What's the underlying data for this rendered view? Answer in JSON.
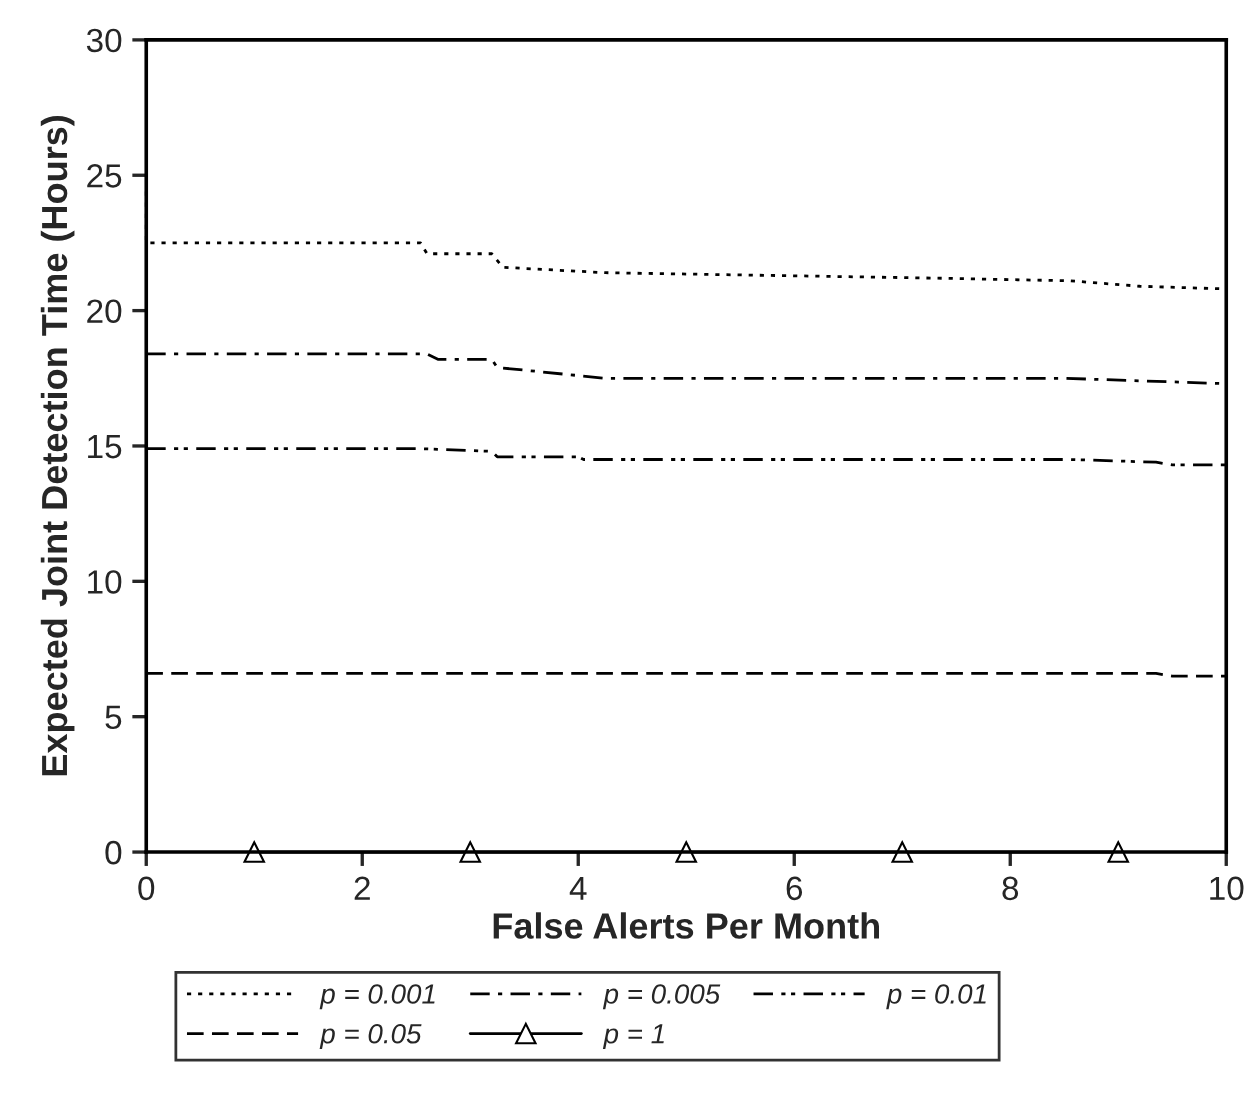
{
  "chart_data": {
    "type": "line",
    "xlabel": "False Alerts Per Month",
    "ylabel": "Expected Joint Detection Time (Hours)",
    "xlim": [
      0,
      10
    ],
    "ylim": [
      0,
      30
    ],
    "xticks": [
      0,
      2,
      4,
      6,
      8,
      10
    ],
    "yticks": [
      0,
      5,
      10,
      15,
      20,
      25,
      30
    ],
    "grid": false,
    "legend": "bottom",
    "series": [
      {
        "name": "p = 0.001",
        "color": "#000000",
        "line_style": "dotted",
        "marker": "none",
        "x": [
          0,
          0,
          2.54,
          2.6,
          3.2,
          3.3,
          4.25,
          7.3,
          8.56,
          9.2,
          10
        ],
        "values": [
          24.4,
          22.5,
          22.5,
          22.1,
          22.1,
          21.6,
          21.4,
          21.2,
          21.1,
          20.9,
          20.8
        ]
      },
      {
        "name": "p = 0.005",
        "color": "#000000",
        "line_style": "dashdot",
        "marker": "none",
        "x": [
          0,
          2.6,
          2.7,
          3.2,
          3.25,
          4.25,
          8.5,
          10
        ],
        "values": [
          18.4,
          18.4,
          18.2,
          18.2,
          17.9,
          17.5,
          17.5,
          17.3
        ]
      },
      {
        "name": "p = 0.01",
        "color": "#000000",
        "line_style": "dashdotdot",
        "marker": "none",
        "x": [
          0,
          2.54,
          3.2,
          3.25,
          4.0,
          4.05,
          8.56,
          9.35,
          9.5,
          10
        ],
        "values": [
          14.9,
          14.9,
          14.8,
          14.6,
          14.6,
          14.5,
          14.5,
          14.4,
          14.3,
          14.3
        ]
      },
      {
        "name": "p = 0.05",
        "color": "#000000",
        "line_style": "dashed",
        "marker": "none",
        "x": [
          0,
          9.35,
          9.5,
          10
        ],
        "values": [
          6.6,
          6.6,
          6.5,
          6.5
        ]
      },
      {
        "name": "p = 1",
        "color": "#000000",
        "line_style": "solid",
        "marker": "triangle",
        "x": [
          1,
          3,
          5,
          7,
          9
        ],
        "values": [
          0,
          0,
          0,
          0,
          0
        ]
      }
    ]
  }
}
